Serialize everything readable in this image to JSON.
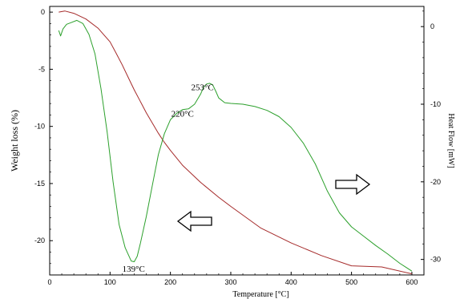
{
  "chart_data": {
    "type": "line",
    "xlabel": "Temperature  [°C]",
    "ylabel_left": "Weight loss (%)",
    "ylabel_right": "Heat Flow [mW]",
    "xlim": [
      0,
      620
    ],
    "ylim_left": [
      -23,
      0.5
    ],
    "ylim_right": [
      -32,
      2.6
    ],
    "x_ticks": [
      0,
      100,
      200,
      300,
      400,
      500,
      600
    ],
    "y_ticks_left": [
      0,
      -5,
      -10,
      -15,
      -20
    ],
    "y_ticks_right": [
      0,
      -10,
      -20,
      -30
    ],
    "grid": false,
    "legend": "none",
    "series": [
      {
        "axis": "left",
        "color": "#a52a2a",
        "x": [
          15,
          25,
          40,
          60,
          80,
          100,
          110,
          120,
          130,
          140,
          150,
          160,
          170,
          180,
          190,
          200,
          220,
          250,
          280,
          300,
          350,
          400,
          450,
          500,
          550,
          600
        ],
        "values": [
          0.0,
          0.1,
          -0.1,
          -0.6,
          -1.4,
          -2.6,
          -3.6,
          -4.6,
          -5.7,
          -6.8,
          -7.8,
          -8.8,
          -9.7,
          -10.6,
          -11.4,
          -12.1,
          -13.4,
          -14.9,
          -16.2,
          -17.0,
          -18.9,
          -20.2,
          -21.3,
          -22.2,
          -22.3,
          -22.9
        ]
      },
      {
        "axis": "right",
        "color": "#2ca02c",
        "x": [
          15,
          18,
          22,
          28,
          35,
          45,
          55,
          65,
          75,
          85,
          95,
          105,
          115,
          125,
          135,
          140,
          145,
          150,
          160,
          170,
          180,
          190,
          200,
          210,
          220,
          230,
          240,
          250,
          255,
          260,
          265,
          270,
          275,
          280,
          290,
          300,
          320,
          340,
          360,
          380,
          400,
          420,
          440,
          460,
          480,
          500,
          520,
          540,
          560,
          580,
          600
        ],
        "values": [
          -0.5,
          -1.2,
          -0.3,
          0.3,
          0.5,
          0.8,
          0.4,
          -1.0,
          -3.5,
          -8.0,
          -13.5,
          -20.0,
          -25.5,
          -28.5,
          -30.2,
          -30.3,
          -29.6,
          -28.0,
          -24.5,
          -20.5,
          -16.5,
          -13.8,
          -12.0,
          -11.2,
          -10.7,
          -10.6,
          -10.0,
          -8.7,
          -7.8,
          -7.4,
          -7.3,
          -7.5,
          -8.3,
          -9.2,
          -9.8,
          -9.9,
          -10.0,
          -10.3,
          -10.8,
          -11.6,
          -13.0,
          -15.0,
          -17.7,
          -21.2,
          -24.0,
          -25.8,
          -27.0,
          -28.2,
          -29.3,
          -30.5,
          -31.5
        ]
      }
    ],
    "annotations": [
      {
        "text": "139°C",
        "x": 139,
        "y_right": -31.6
      },
      {
        "text": "220°C",
        "x": 220,
        "y_right": -11.6
      },
      {
        "text": "253°C",
        "x": 253,
        "y_right": -8.2
      }
    ],
    "arrows": [
      {
        "direction": "right",
        "meaning": "right axis"
      },
      {
        "direction": "left",
        "meaning": "left axis"
      }
    ]
  }
}
